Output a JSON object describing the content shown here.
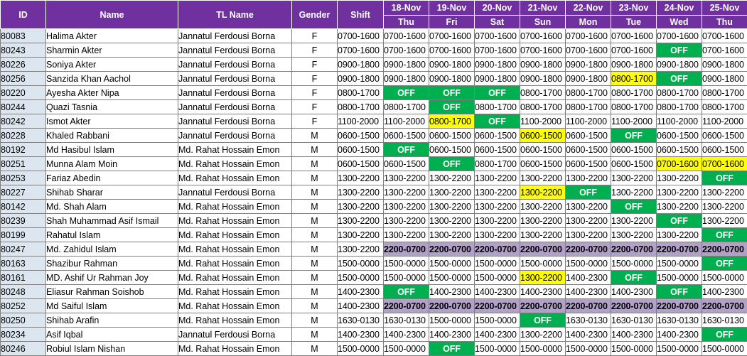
{
  "headers": {
    "id": "ID",
    "name": "Name",
    "tl_name": "TL Name",
    "gender": "Gender",
    "shift": "Shift"
  },
  "days": [
    {
      "date": "18-Nov",
      "weekday": "Thu"
    },
    {
      "date": "19-Nov",
      "weekday": "Fri"
    },
    {
      "date": "20-Nov",
      "weekday": "Sat"
    },
    {
      "date": "21-Nov",
      "weekday": "Sun"
    },
    {
      "date": "22-Nov",
      "weekday": "Mon"
    },
    {
      "date": "23-Nov",
      "weekday": "Tue"
    },
    {
      "date": "24-Nov",
      "weekday": "Wed"
    },
    {
      "date": "25-Nov",
      "weekday": "Thu"
    }
  ],
  "colors": {
    "header": "#7030a0",
    "id_column": "#dce6f1",
    "off": "#00b050",
    "changed_shift": "#ffff00",
    "night_shift": "#b1a0c7"
  },
  "rows": [
    {
      "id": "80083",
      "name": "Halima Akter",
      "tl": "Jannatul Ferdousi Borna",
      "gender": "F",
      "shift": "0700-1600",
      "days": [
        "0700-1600",
        "0700-1600",
        "0700-1600",
        "0700-1600",
        "0700-1600",
        "0700-1600",
        "0700-1600",
        "0700-1600"
      ]
    },
    {
      "id": "80243",
      "name": "Sharmin Akter",
      "tl": "Jannatul Ferdousi Borna",
      "gender": "F",
      "shift": "0700-1600",
      "days": [
        "0700-1600",
        "0700-1600",
        "0700-1600",
        "0700-1600",
        "0700-1600",
        "0700-1600",
        "OFF",
        "0700-1600"
      ]
    },
    {
      "id": "80226",
      "name": "Soniya Akter",
      "tl": "Jannatul Ferdousi Borna",
      "gender": "F",
      "shift": "0900-1800",
      "days": [
        "0900-1800",
        "0900-1800",
        "0900-1800",
        "0900-1800",
        "0900-1800",
        "0900-1800",
        "0900-1800",
        "0900-1800"
      ]
    },
    {
      "id": "80256",
      "name": "Sanzida Khan Aachol",
      "tl": "Jannatul Ferdousi Borna",
      "gender": "F",
      "shift": "0900-1800",
      "days": [
        "0900-1800",
        "0900-1800",
        "0900-1800",
        "0900-1800",
        "0900-1800",
        "0800-1700",
        "OFF",
        "0900-1800"
      ]
    },
    {
      "id": "80220",
      "name": "Ayesha Akter Nipa",
      "tl": "Jannatul Ferdousi Borna",
      "gender": "F",
      "shift": "0800-1700",
      "days": [
        "OFF",
        "OFF",
        "OFF",
        "0800-1700",
        "0800-1700",
        "0800-1700",
        "0800-1700",
        "0800-1700"
      ]
    },
    {
      "id": "80244",
      "name": "Quazi Tasnia",
      "tl": "Jannatul Ferdousi Borna",
      "gender": "F",
      "shift": "0800-1700",
      "days": [
        "0800-1700",
        "OFF",
        "0800-1700",
        "0800-1700",
        "0800-1700",
        "0800-1700",
        "0800-1700",
        "0800-1700"
      ]
    },
    {
      "id": "80242",
      "name": "Ismot Akter",
      "tl": "Jannatul Ferdousi Borna",
      "gender": "F",
      "shift": "1100-2000",
      "days": [
        "1100-2000",
        "0800-1700",
        "OFF",
        "1100-2000",
        "1100-2000",
        "1100-2000",
        "1100-2000",
        "1100-2000"
      ]
    },
    {
      "id": "80228",
      "name": "Khaled Rabbani",
      "tl": "Jannatul Ferdousi Borna",
      "gender": "M",
      "shift": "0600-1500",
      "days": [
        "0600-1500",
        "0600-1500",
        "0600-1500",
        "0600-1500",
        "0600-1500",
        "OFF",
        "0600-1500",
        "0600-1500"
      ]
    },
    {
      "id": "80192",
      "name": "Md Hasibul Islam",
      "tl": "Md. Rahat Hossain Emon",
      "gender": "M",
      "shift": "0600-1500",
      "days": [
        "OFF",
        "0600-1500",
        "0600-1500",
        "0600-1500",
        "0600-1500",
        "0600-1500",
        "0600-1500",
        "0600-1500"
      ]
    },
    {
      "id": "80251",
      "name": "Munna Alam Moin",
      "tl": "Md. Rahat Hossain Emon",
      "gender": "M",
      "shift": "0600-1500",
      "days": [
        "0600-1500",
        "OFF",
        "0800-1700",
        "0600-1500",
        "0600-1500",
        "0600-1500",
        "0700-1600",
        "0700-1600"
      ]
    },
    {
      "id": "80253",
      "name": "Fariaz Abedin",
      "tl": "Md. Rahat Hossain Emon",
      "gender": "M",
      "shift": "1300-2200",
      "days": [
        "1300-2200",
        "1300-2200",
        "1300-2200",
        "1300-2200",
        "1300-2200",
        "1300-2200",
        "1300-2200",
        "OFF"
      ]
    },
    {
      "id": "80227",
      "name": "Shihab Sharar",
      "tl": "Jannatul Ferdousi Borna",
      "gender": "M",
      "shift": "1300-2200",
      "days": [
        "1300-2200",
        "1300-2200",
        "1300-2200",
        "1300-2200",
        "OFF",
        "1300-2200",
        "1300-2200",
        "1300-2200"
      ]
    },
    {
      "id": "80142",
      "name": "Md. Shah Alam",
      "tl": "Md. Rahat Hossain Emon",
      "gender": "M",
      "shift": "1300-2200",
      "days": [
        "1300-2200",
        "1300-2200",
        "1300-2200",
        "1300-2200",
        "1300-2200",
        "OFF",
        "1300-2200",
        "1300-2200"
      ]
    },
    {
      "id": "80239",
      "name": "Shah Muhammad Asif Ismail",
      "tl": "Md. Rahat Hossain Emon",
      "gender": "M",
      "shift": "1300-2200",
      "days": [
        "1300-2200",
        "1300-2200",
        "1300-2200",
        "1300-2200",
        "1300-2200",
        "1300-2200",
        "OFF",
        "1300-2200"
      ]
    },
    {
      "id": "80199",
      "name": "Rahatul Islam",
      "tl": "Md. Rahat Hossain Emon",
      "gender": "M",
      "shift": "1300-2200",
      "days": [
        "1300-2200",
        "1300-2200",
        "1300-2200",
        "1300-2200",
        "1300-2200",
        "1300-2200",
        "1300-2200",
        "OFF"
      ]
    },
    {
      "id": "80247",
      "name": "Md. Zahidul Islam",
      "tl": "Md. Rahat Hossain Emon",
      "gender": "M",
      "shift": "1300-2200",
      "days": [
        "2200-0700",
        "2200-0700",
        "2200-0700",
        "2200-0700",
        "2200-0700",
        "2200-0700",
        "2200-0700",
        "2200-0700"
      ]
    },
    {
      "id": "80163",
      "name": "Shazibur Rahman",
      "tl": "Md. Rahat Hossain Emon",
      "gender": "M",
      "shift": "1500-0000",
      "days": [
        "1500-0000",
        "1500-0000",
        "1500-0000",
        "1500-0000",
        "1500-0000",
        "1500-0000",
        "1500-0000",
        "OFF"
      ]
    },
    {
      "id": "80161",
      "name": "MD. Ashif Ur Rahman Joy",
      "tl": "Md. Rahat Hossain Emon",
      "gender": "M",
      "shift": "1500-0000",
      "days": [
        "1500-0000",
        "1500-0000",
        "1500-0000",
        "1300-2200",
        "1400-2300",
        "OFF",
        "1500-0000",
        "1500-0000"
      ]
    },
    {
      "id": "80248",
      "name": "Eliasur Rahman Soishob",
      "tl": "Md. Rahat Hossain Emon",
      "gender": "M",
      "shift": "1400-2300",
      "days": [
        "OFF",
        "1400-2300",
        "1400-2300",
        "1400-2300",
        "1400-2300",
        "1400-2300",
        "OFF",
        "1400-2300"
      ]
    },
    {
      "id": "80252",
      "name": "Md Saiful Islam",
      "tl": "Md. Rahat Hossain Emon",
      "gender": "M",
      "shift": "1400-2300",
      "days": [
        "2200-0700",
        "2200-0700",
        "2200-0700",
        "2200-0700",
        "2200-0700",
        "2200-0700",
        "2200-0700",
        "2200-0700"
      ]
    },
    {
      "id": "80250",
      "name": "Shihab Arafin",
      "tl": "Md. Rahat Hossain Emon",
      "gender": "M",
      "shift": "1630-0130",
      "days": [
        "1630-0130",
        "1500-0000",
        "1500-0000",
        "OFF",
        "1630-0130",
        "1630-0130",
        "1630-0130",
        "1630-0130"
      ]
    },
    {
      "id": "80234",
      "name": "Asif Iqbal",
      "tl": "Jannatul Ferdousi Borna",
      "gender": "M",
      "shift": "1400-2300",
      "days": [
        "1400-2300",
        "1400-2300",
        "1400-2300",
        "1300-2200",
        "1400-2300",
        "1400-2300",
        "1400-2300",
        "OFF"
      ]
    },
    {
      "id": "80246",
      "name": "Robiul Islam Nishan",
      "tl": "Md. Rahat Hossain Emon",
      "gender": "M",
      "shift": "1500-0000",
      "days": [
        "1500-0000",
        "OFF",
        "1500-0000",
        "1500-0000",
        "1500-0000",
        "1500-0000",
        "1500-0000",
        "1500-0000"
      ]
    }
  ],
  "highlights": {
    "yellow": [
      [
        3,
        5
      ],
      [
        6,
        1
      ],
      [
        7,
        3
      ],
      [
        9,
        6
      ],
      [
        9,
        7
      ],
      [
        11,
        3
      ],
      [
        17,
        3
      ]
    ],
    "night_rows": [
      15,
      19
    ]
  }
}
